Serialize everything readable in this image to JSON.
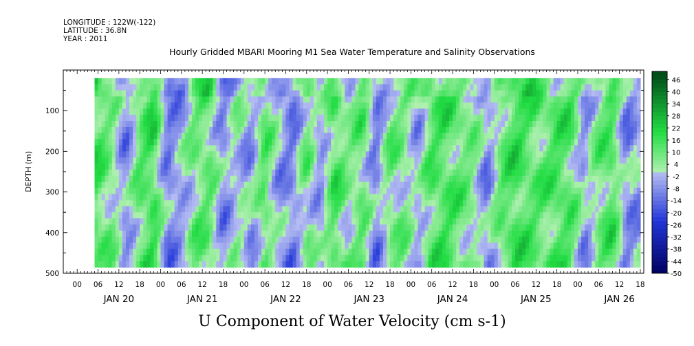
{
  "header": {
    "longitude": "LONGITUDE : 122W(-122)",
    "latitude": "LATITUDE : 36.8N",
    "year": "YEAR : 2011"
  },
  "chart_data": {
    "type": "heatmap",
    "title": "Hourly Gridded MBARI Mooring M1 Sea Water Temperature and Salinity Observations",
    "xlabel": "U Component of Water Velocity (cm s-1)",
    "ylabel": "DEPTH (m)",
    "y_axis": {
      "ylim": [
        0,
        500
      ],
      "inverted": true,
      "ticks": [
        100,
        200,
        300,
        400,
        500
      ],
      "minor_step": 50
    },
    "x_axis": {
      "unit": "hours since JAN 20 00",
      "xlim": [
        -4,
        163
      ],
      "hour_ticks": [
        {
          "h": 0,
          "label": "00"
        },
        {
          "h": 6,
          "label": "06"
        },
        {
          "h": 12,
          "label": "12"
        },
        {
          "h": 18,
          "label": "18"
        },
        {
          "h": 24,
          "label": "00"
        },
        {
          "h": 30,
          "label": "06"
        },
        {
          "h": 36,
          "label": "12"
        },
        {
          "h": 42,
          "label": "18"
        },
        {
          "h": 48,
          "label": "00"
        },
        {
          "h": 54,
          "label": "06"
        },
        {
          "h": 60,
          "label": "12"
        },
        {
          "h": 66,
          "label": "18"
        },
        {
          "h": 72,
          "label": "00"
        },
        {
          "h": 78,
          "label": "06"
        },
        {
          "h": 84,
          "label": "12"
        },
        {
          "h": 90,
          "label": "18"
        },
        {
          "h": 96,
          "label": "00"
        },
        {
          "h": 102,
          "label": "06"
        },
        {
          "h": 108,
          "label": "12"
        },
        {
          "h": 114,
          "label": "18"
        },
        {
          "h": 120,
          "label": "00"
        },
        {
          "h": 126,
          "label": "06"
        },
        {
          "h": 132,
          "label": "12"
        },
        {
          "h": 138,
          "label": "18"
        },
        {
          "h": 144,
          "label": "00"
        },
        {
          "h": 150,
          "label": "06"
        },
        {
          "h": 156,
          "label": "12"
        },
        {
          "h": 162,
          "label": "18"
        }
      ],
      "day_labels": [
        {
          "h": 12,
          "label": "JAN 20"
        },
        {
          "h": 36,
          "label": "JAN 21"
        },
        {
          "h": 60,
          "label": "JAN 22"
        },
        {
          "h": 84,
          "label": "JAN 23"
        },
        {
          "h": 108,
          "label": "JAN 24"
        },
        {
          "h": 132,
          "label": "JAN 25"
        },
        {
          "h": 156,
          "label": "JAN 26"
        }
      ]
    },
    "data_extent": {
      "x_start_h": 5,
      "x_end_h": 162,
      "depth_top": 20,
      "depth_bottom": 485
    },
    "colorbar": {
      "levels": [
        -50,
        -48,
        -46,
        -44,
        -42,
        -40,
        -38,
        -36,
        -34,
        -32,
        -30,
        -28,
        -26,
        -24,
        -22,
        -20,
        -18,
        -16,
        -14,
        -12,
        -10,
        -8,
        -6,
        -4,
        -2,
        0,
        2,
        4,
        6,
        8,
        10,
        12,
        14,
        16,
        18,
        20,
        22,
        24,
        26,
        28,
        30,
        32,
        34,
        36,
        38,
        40,
        42,
        44,
        46,
        48
      ],
      "labels": [
        "46",
        "40",
        "34",
        "28",
        "22",
        "16",
        "10",
        "4",
        "-2",
        "-8",
        "-14",
        "-20",
        "-26",
        "-32",
        "-38",
        "-44",
        "-50"
      ],
      "colors": {
        "neg_dark": "#000060",
        "neg_mid": "#2236d8",
        "neg_light": "#b6bef2",
        "pos_light": "#b0f0b0",
        "pos_mid": "#22dd44",
        "pos_dark": "#004d18"
      }
    },
    "u_values": {
      "note_grid": "hourly columns (h) x depth rows",
      "column_means": [
        {
          "h": 5,
          "u": 14
        },
        {
          "h": 10,
          "u": 6
        },
        {
          "h": 14,
          "u": -8
        },
        {
          "h": 18,
          "u": 10
        },
        {
          "h": 22,
          "u": 16
        },
        {
          "h": 26,
          "u": -10
        },
        {
          "h": 30,
          "u": -4
        },
        {
          "h": 34,
          "u": 8
        },
        {
          "h": 38,
          "u": 10
        },
        {
          "h": 42,
          "u": -8
        },
        {
          "h": 46,
          "u": 2
        },
        {
          "h": 50,
          "u": -6
        },
        {
          "h": 54,
          "u": 12
        },
        {
          "h": 58,
          "u": -4
        },
        {
          "h": 62,
          "u": -10
        },
        {
          "h": 66,
          "u": 8
        },
        {
          "h": 70,
          "u": -6
        },
        {
          "h": 74,
          "u": 14
        },
        {
          "h": 78,
          "u": 4
        },
        {
          "h": 82,
          "u": 10
        },
        {
          "h": 86,
          "u": -10
        },
        {
          "h": 90,
          "u": 8
        },
        {
          "h": 94,
          "u": 6
        },
        {
          "h": 98,
          "u": -4
        },
        {
          "h": 102,
          "u": 12
        },
        {
          "h": 106,
          "u": 14
        },
        {
          "h": 110,
          "u": 10
        },
        {
          "h": 114,
          "u": 6
        },
        {
          "h": 118,
          "u": -8
        },
        {
          "h": 122,
          "u": 10
        },
        {
          "h": 126,
          "u": 16
        },
        {
          "h": 130,
          "u": 12
        },
        {
          "h": 134,
          "u": 10
        },
        {
          "h": 138,
          "u": 14
        },
        {
          "h": 142,
          "u": 12
        },
        {
          "h": 146,
          "u": -6
        },
        {
          "h": 150,
          "u": 8
        },
        {
          "h": 154,
          "u": 14
        },
        {
          "h": 158,
          "u": -8
        },
        {
          "h": 162,
          "u": -4
        }
      ]
    }
  }
}
